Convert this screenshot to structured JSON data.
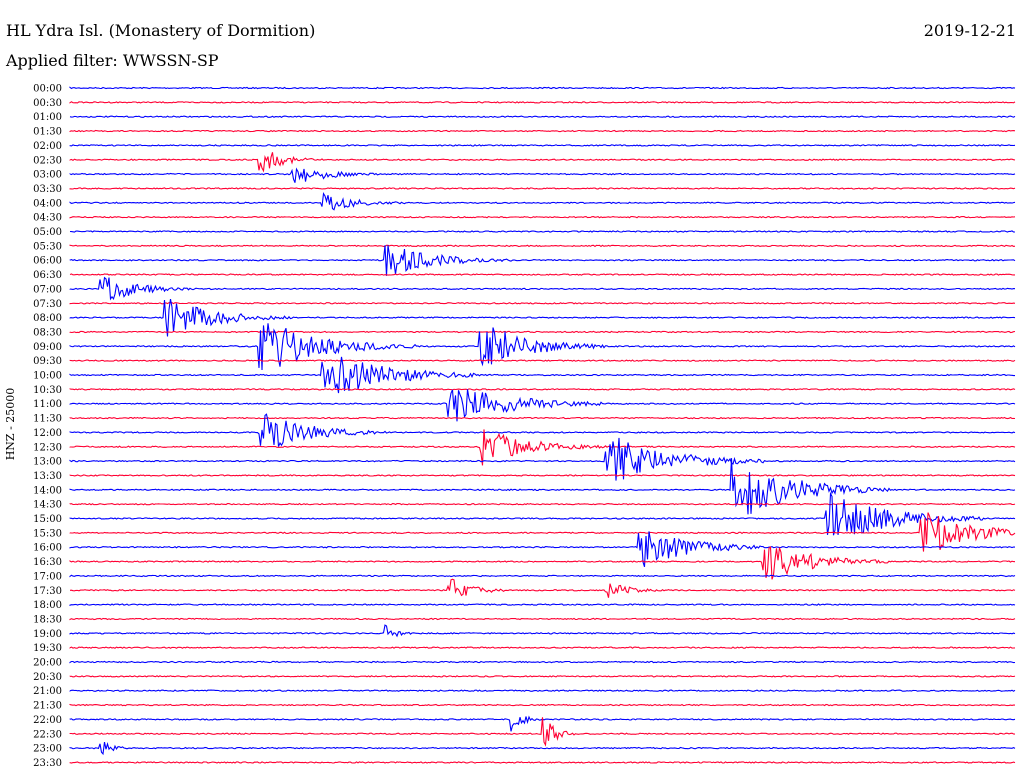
{
  "header": {
    "station": "HL Ydra Isl. (Monastery of Dormition)",
    "date": "2019-12-21",
    "filter": "Applied filter: WWSSN-SP"
  },
  "chart_data": {
    "type": "line",
    "title": "HL Ydra Isl. (Monastery of Dormition)",
    "subtitle": "Applied filter: WWSSN-SP",
    "ylabel": "HNZ - 25000",
    "xlabel": "",
    "grid": false,
    "colors": {
      "even_rows": "#0000ff",
      "odd_rows": "#ff0033"
    },
    "ticks": [
      "00:00",
      "00:30",
      "01:00",
      "01:30",
      "02:00",
      "02:30",
      "03:00",
      "03:30",
      "04:00",
      "04:30",
      "05:00",
      "05:30",
      "06:00",
      "06:30",
      "07:00",
      "07:30",
      "08:00",
      "08:30",
      "09:00",
      "09:30",
      "10:00",
      "10:30",
      "11:00",
      "11:30",
      "12:00",
      "12:30",
      "13:00",
      "13:30",
      "14:00",
      "14:30",
      "15:00",
      "15:30",
      "16:00",
      "16:30",
      "17:00",
      "17:30",
      "18:00",
      "18:30",
      "19:00",
      "19:30",
      "20:00",
      "20:30",
      "21:00",
      "21:30",
      "22:00",
      "22:30",
      "23:00",
      "23:30"
    ],
    "trace_minutes": [
      0,
      30
    ],
    "events": [
      {
        "row": 5,
        "minute": 6,
        "amplitude": 14,
        "duration": 2
      },
      {
        "row": 6,
        "minute": 7,
        "amplitude": 12,
        "duration": 3
      },
      {
        "row": 8,
        "minute": 8,
        "amplitude": 10,
        "duration": 3
      },
      {
        "row": 12,
        "minute": 10,
        "amplitude": 18,
        "duration": 4
      },
      {
        "row": 14,
        "minute": 1,
        "amplitude": 16,
        "duration": 3
      },
      {
        "row": 16,
        "minute": 3,
        "amplitude": 22,
        "duration": 4
      },
      {
        "row": 18,
        "minute": 6,
        "amplitude": 30,
        "duration": 5
      },
      {
        "row": 18,
        "minute": 13,
        "amplitude": 26,
        "duration": 4
      },
      {
        "row": 20,
        "minute": 8,
        "amplitude": 28,
        "duration": 5
      },
      {
        "row": 22,
        "minute": 12,
        "amplitude": 24,
        "duration": 5
      },
      {
        "row": 24,
        "minute": 6,
        "amplitude": 22,
        "duration": 4
      },
      {
        "row": 25,
        "minute": 13,
        "amplitude": 20,
        "duration": 4
      },
      {
        "row": 26,
        "minute": 17,
        "amplitude": 30,
        "duration": 5
      },
      {
        "row": 28,
        "minute": 21,
        "amplitude": 34,
        "duration": 5
      },
      {
        "row": 30,
        "minute": 24,
        "amplitude": 28,
        "duration": 5
      },
      {
        "row": 31,
        "minute": 27,
        "amplitude": 26,
        "duration": 4
      },
      {
        "row": 32,
        "minute": 18,
        "amplitude": 24,
        "duration": 4
      },
      {
        "row": 33,
        "minute": 22,
        "amplitude": 22,
        "duration": 4
      },
      {
        "row": 35,
        "minute": 12,
        "amplitude": 14,
        "duration": 2
      },
      {
        "row": 35,
        "minute": 17,
        "amplitude": 12,
        "duration": 2
      },
      {
        "row": 38,
        "minute": 10,
        "amplitude": 10,
        "duration": 1
      },
      {
        "row": 44,
        "minute": 14,
        "amplitude": 12,
        "duration": 1
      },
      {
        "row": 45,
        "minute": 15,
        "amplitude": 20,
        "duration": 1
      },
      {
        "row": 46,
        "minute": 1,
        "amplitude": 8,
        "duration": 1
      }
    ]
  }
}
